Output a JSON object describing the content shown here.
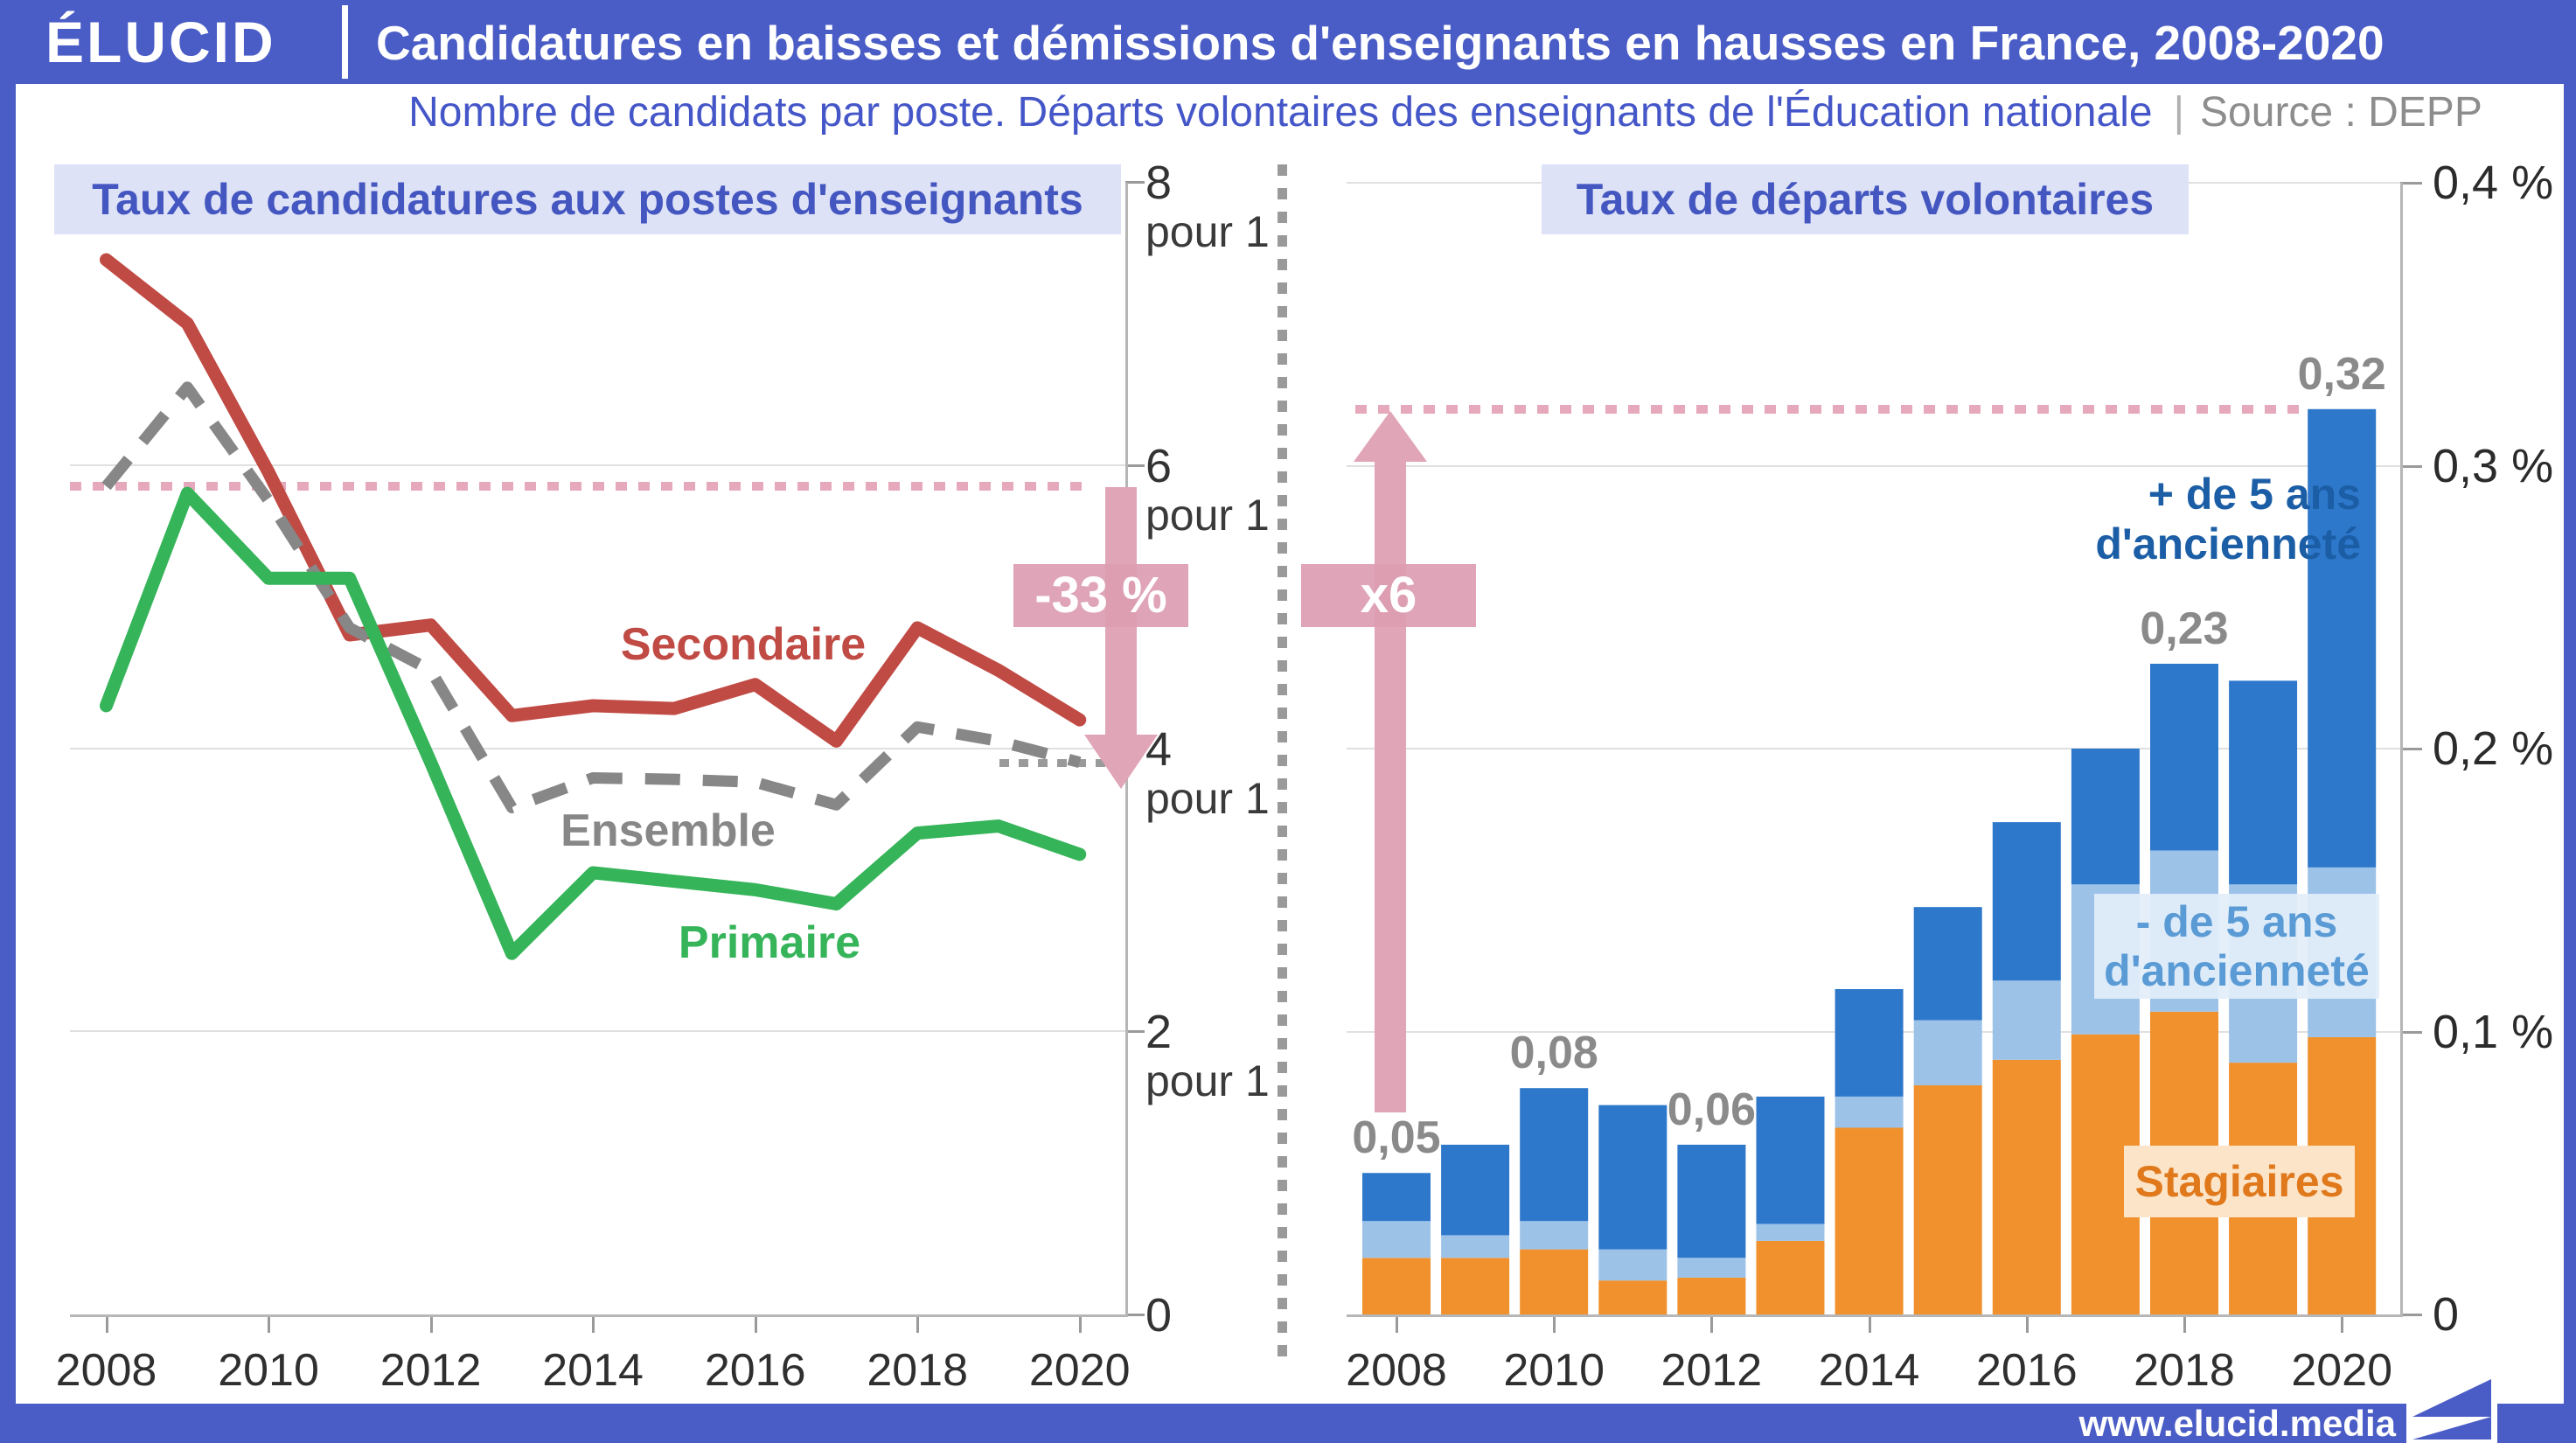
{
  "header": {
    "logo": "ÉLUCID",
    "title": "Candidatures en baisses et démissions d'enseignants en hausses en France, 2008-2020"
  },
  "subtitle": {
    "text": "Nombre de candidats par poste. Départs volontaires des enseignants de l'Éducation nationale",
    "divider": "|",
    "source": "Source : DEPP"
  },
  "footer": {
    "url": "www.elucid.media"
  },
  "colors": {
    "brand_blue": "#4a5cc5",
    "title_box_bg": "#dee2f6",
    "title_box_text": "#4456c0",
    "secondaire_red": "#c04a44",
    "ensemble_gray": "#878787",
    "primaire_green": "#36b45a",
    "rose_accent": "#e0a5b7",
    "dark_blue_bar": "#2e78cb",
    "light_blue_bar": "#9cc2e8",
    "orange_bar": "#f0912d",
    "value_label_gray": "#8a8a8a"
  },
  "chart_data": [
    {
      "type": "line",
      "title": "Taux de candidatures aux postes d'enseignants",
      "x": [
        2008,
        2009,
        2010,
        2011,
        2012,
        2013,
        2014,
        2015,
        2016,
        2017,
        2018,
        2019,
        2020
      ],
      "x_tick_years": [
        2008,
        2010,
        2012,
        2014,
        2016,
        2018,
        2020
      ],
      "ylim": [
        0,
        8
      ],
      "y_ticks": [
        {
          "value": 8,
          "label": "8",
          "unit": "pour 1",
          "gridline": false
        },
        {
          "value": 6,
          "label": "6",
          "unit": "pour 1",
          "gridline": true
        },
        {
          "value": 4,
          "label": "4",
          "unit": "pour 1",
          "gridline": true
        },
        {
          "value": 2,
          "label": "2",
          "unit": "pour 1",
          "gridline": true
        },
        {
          "value": 0,
          "label": "0",
          "unit": "",
          "gridline": false
        }
      ],
      "series": [
        {
          "name": "Secondaire",
          "color": "#c04a44",
          "dash": false,
          "values": [
            7.45,
            7.0,
            5.95,
            4.8,
            4.87,
            4.23,
            4.3,
            4.28,
            4.45,
            4.05,
            4.85,
            4.55,
            4.2
          ]
        },
        {
          "name": "Ensemble",
          "color": "#878787",
          "dash": true,
          "values": [
            5.85,
            6.55,
            5.75,
            4.85,
            4.55,
            3.58,
            3.79,
            3.78,
            3.76,
            3.6,
            4.15,
            4.05,
            3.9
          ]
        },
        {
          "name": "Primaire",
          "color": "#36b45a",
          "dash": false,
          "values": [
            4.3,
            5.8,
            5.2,
            5.2,
            3.9,
            2.55,
            3.12,
            3.06,
            3.0,
            2.9,
            3.4,
            3.45,
            3.25
          ]
        }
      ],
      "reference_start_value": 5.85,
      "reference_end_value": 3.9,
      "annotation": {
        "badge": "-33 %",
        "direction": "down"
      },
      "grid": true
    },
    {
      "type": "stacked-bar",
      "title": "Taux de départs volontaires",
      "x": [
        2008,
        2009,
        2010,
        2011,
        2012,
        2013,
        2014,
        2015,
        2016,
        2017,
        2018,
        2019,
        2020
      ],
      "x_tick_years": [
        2008,
        2010,
        2012,
        2014,
        2016,
        2018,
        2020
      ],
      "ylim_percent": [
        0,
        0.4
      ],
      "y_ticks": [
        {
          "value": 0.4,
          "label": "0,4 %",
          "gridline": true
        },
        {
          "value": 0.3,
          "label": "0,3 %",
          "gridline": true
        },
        {
          "value": 0.2,
          "label": "0,2 %",
          "gridline": true
        },
        {
          "value": 0.1,
          "label": "0,1 %",
          "gridline": true
        },
        {
          "value": 0,
          "label": "0",
          "gridline": false
        }
      ],
      "series": [
        {
          "name": "Stagiaires",
          "color": "#f0912d",
          "values": [
            0.02,
            0.02,
            0.023,
            0.012,
            0.013,
            0.026,
            0.066,
            0.081,
            0.09,
            0.099,
            0.107,
            0.089,
            0.098
          ]
        },
        {
          "name": "- de 5 ans d'ancienneté",
          "color": "#9cc2e8",
          "values": [
            0.013,
            0.008,
            0.01,
            0.011,
            0.007,
            0.006,
            0.011,
            0.023,
            0.028,
            0.053,
            0.057,
            0.063,
            0.06
          ]
        },
        {
          "name": "+ de 5 ans d'ancienneté",
          "color": "#2e78cb",
          "values": [
            0.017,
            0.032,
            0.047,
            0.051,
            0.04,
            0.045,
            0.038,
            0.04,
            0.056,
            0.048,
            0.066,
            0.072,
            0.162
          ]
        }
      ],
      "bar_value_labels": [
        {
          "year": 2008,
          "text": "0,05"
        },
        {
          "year": 2010,
          "text": "0,08"
        },
        {
          "year": 2012,
          "text": "0,06"
        },
        {
          "year": 2018,
          "text": "0,23"
        },
        {
          "year": 2020,
          "text": "0,32"
        }
      ],
      "reference_value": 0.32,
      "annotation": {
        "badge": "x6",
        "direction": "up"
      },
      "labels": {
        "plus5": "+ de 5 ans\nd'ancienneté",
        "moins5": "- de 5 ans\nd'ancienneté",
        "stagiaires": "Stagiaires"
      }
    }
  ]
}
